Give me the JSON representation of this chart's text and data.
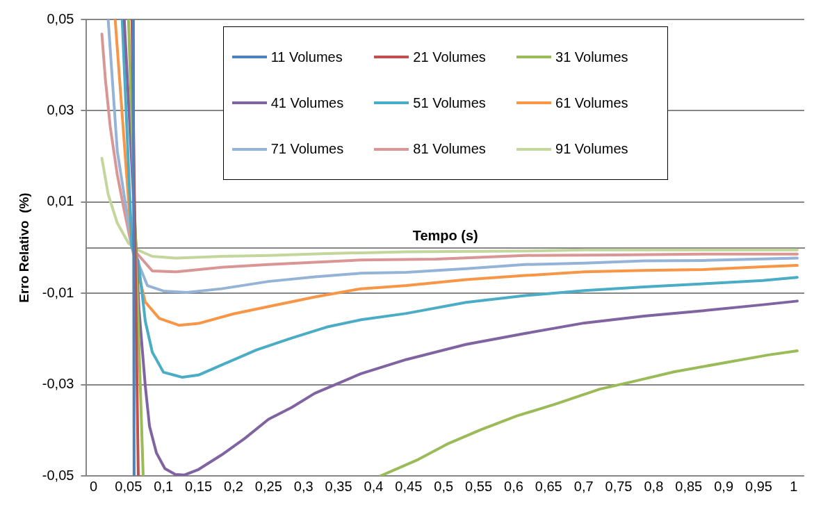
{
  "chart_data": {
    "type": "line",
    "xlabel": "Tempo (s)",
    "ylabel": "Erro Relativo  (%)",
    "xlim": [
      -0.01,
      1.015
    ],
    "xticks": [
      {
        "value": 0,
        "label": "0"
      },
      {
        "value": 0.05,
        "label": "0,05"
      },
      {
        "value": 0.1,
        "label": "0,1"
      },
      {
        "value": 0.15,
        "label": "0,15"
      },
      {
        "value": 0.2,
        "label": "0,2"
      },
      {
        "value": 0.25,
        "label": "0,25"
      },
      {
        "value": 0.3,
        "label": "0,3"
      },
      {
        "value": 0.35,
        "label": "0,35"
      },
      {
        "value": 0.4,
        "label": "0,4"
      },
      {
        "value": 0.45,
        "label": "0,45"
      },
      {
        "value": 0.5,
        "label": "0,5"
      },
      {
        "value": 0.55,
        "label": "0,55"
      },
      {
        "value": 0.6,
        "label": "0,6"
      },
      {
        "value": 0.65,
        "label": "0,65"
      },
      {
        "value": 0.7,
        "label": "0,7"
      },
      {
        "value": 0.75,
        "label": "0,75"
      },
      {
        "value": 0.8,
        "label": "0,8"
      },
      {
        "value": 0.85,
        "label": "0,85"
      },
      {
        "value": 0.9,
        "label": "0,9"
      },
      {
        "value": 0.95,
        "label": "0,95"
      },
      {
        "value": 1,
        "label": "1"
      }
    ],
    "ylim": [
      -0.05,
      0.05
    ],
    "yticks": [
      {
        "value": -0.05,
        "label": "-0,05"
      },
      {
        "value": -0.03,
        "label": "-0,03"
      },
      {
        "value": -0.01,
        "label": "-0,01"
      },
      {
        "value": 0.01,
        "label": "0,01"
      },
      {
        "value": 0.03,
        "label": "0,03"
      },
      {
        "value": 0.05,
        "label": "0,05"
      }
    ],
    "grid": "y",
    "legend": "top",
    "marker": "none",
    "line_style": "solid",
    "series": [
      {
        "name": "11 Volumes",
        "color": "#4f81bd",
        "x": [
          0.057,
          0.058
        ],
        "values": [
          0.05,
          -0.05
        ]
      },
      {
        "name": "21 Volumes",
        "color": "#c0504d",
        "x": [
          0.055,
          0.064
        ],
        "values": [
          0.05,
          -0.05
        ]
      },
      {
        "name": "31 Volumes",
        "color": "#9bbb59",
        "x": [
          0.05,
          0.071,
          0.3,
          0.41,
          0.464,
          0.507,
          0.553,
          0.604,
          0.659,
          0.723,
          0.774,
          0.829,
          0.905,
          0.964,
          1.005
        ],
        "values": [
          0.05,
          -0.05,
          null,
          -0.05,
          -0.0464,
          -0.0429,
          -0.0399,
          -0.0369,
          -0.0343,
          -0.031,
          -0.0292,
          -0.0272,
          -0.0251,
          -0.0235,
          -0.0226
        ]
      },
      {
        "name": "41 Volumes",
        "color": "#8064a2",
        "x": [
          0.044,
          0.061,
          0.065,
          0.074,
          0.08,
          0.09,
          0.102,
          0.117,
          0.13,
          0.15,
          0.183,
          0.216,
          0.25,
          0.283,
          0.316,
          0.35,
          0.382,
          0.447,
          0.532,
          0.616,
          0.701,
          0.786,
          0.871,
          0.956,
          1.005
        ],
        "values": [
          0.05,
          -0.0003,
          -0.0135,
          -0.0303,
          -0.0391,
          -0.045,
          -0.0484,
          -0.0497,
          -0.0498,
          -0.0486,
          -0.0454,
          -0.0418,
          -0.0376,
          -0.035,
          -0.0319,
          -0.0297,
          -0.0276,
          -0.0245,
          -0.0212,
          -0.0188,
          -0.0165,
          -0.015,
          -0.0138,
          -0.0125,
          -0.0117
        ]
      },
      {
        "name": "51 Volumes",
        "color": "#4bacc6",
        "x": [
          0.041,
          0.055,
          0.064,
          0.074,
          0.084,
          0.1,
          0.127,
          0.15,
          0.183,
          0.233,
          0.283,
          0.333,
          0.382,
          0.447,
          0.532,
          0.616,
          0.701,
          0.786,
          0.871,
          0.956,
          1.005
        ],
        "values": [
          0.05,
          0,
          -0.0029,
          -0.0161,
          -0.0229,
          -0.0273,
          -0.0284,
          -0.0279,
          -0.0257,
          -0.0224,
          -0.0198,
          -0.0174,
          -0.0158,
          -0.0144,
          -0.012,
          -0.0105,
          -0.0094,
          -0.0086,
          -0.0079,
          -0.0072,
          -0.0065
        ]
      },
      {
        "name": "61 Volumes",
        "color": "#f79646",
        "x": [
          0.031,
          0.055,
          0.074,
          0.094,
          0.122,
          0.15,
          0.2,
          0.25,
          0.316,
          0.382,
          0.447,
          0.532,
          0.616,
          0.701,
          0.786,
          0.871,
          0.956,
          1.005
        ],
        "values": [
          0.05,
          0,
          -0.0119,
          -0.0155,
          -0.017,
          -0.0166,
          -0.0145,
          -0.0129,
          -0.0108,
          -0.009,
          -0.0083,
          -0.007,
          -0.0061,
          -0.0053,
          -0.005,
          -0.0048,
          -0.0042,
          -0.0039
        ]
      },
      {
        "name": "71 Volumes",
        "color": "#95b3d7",
        "x": [
          0.021,
          0.034,
          0.05,
          0.055,
          0.077,
          0.1,
          0.133,
          0.183,
          0.25,
          0.316,
          0.382,
          0.447,
          0.532,
          0.616,
          0.701,
          0.786,
          0.871,
          1.005
        ],
        "values": [
          0.05,
          0.0212,
          0.0054,
          0,
          -0.0083,
          -0.0095,
          -0.0098,
          -0.009,
          -0.0074,
          -0.0064,
          -0.0056,
          -0.0054,
          -0.0046,
          -0.0037,
          -0.0034,
          -0.0029,
          -0.0028,
          -0.0023
        ]
      },
      {
        "name": "81 Volumes",
        "color": "#d99694",
        "x": [
          0.012,
          0.017,
          0.024,
          0.034,
          0.044,
          0.055,
          0.084,
          0.117,
          0.183,
          0.25,
          0.382,
          0.489,
          0.616,
          0.744,
          0.871,
          1.005
        ],
        "values": [
          0.0468,
          0.0369,
          0.0264,
          0.016,
          0.0081,
          0,
          -0.0051,
          -0.0053,
          -0.0043,
          -0.0037,
          -0.0027,
          -0.0025,
          -0.0017,
          -0.0016,
          -0.0014,
          -0.0014
        ]
      },
      {
        "name": "91 Volumes",
        "color": "#c3d69b",
        "x": [
          0.012,
          0.021,
          0.034,
          0.05,
          0.06,
          0.084,
          0.117,
          0.183,
          0.25,
          0.333,
          0.447,
          0.637,
          0.701,
          1.005
        ],
        "values": [
          0.0196,
          0.0117,
          0.0054,
          0.001,
          -0.0003,
          -0.0019,
          -0.0023,
          -0.0019,
          -0.0017,
          -0.0013,
          -0.0009,
          -0.0007,
          -0.0005,
          -0.0005
        ]
      }
    ]
  }
}
